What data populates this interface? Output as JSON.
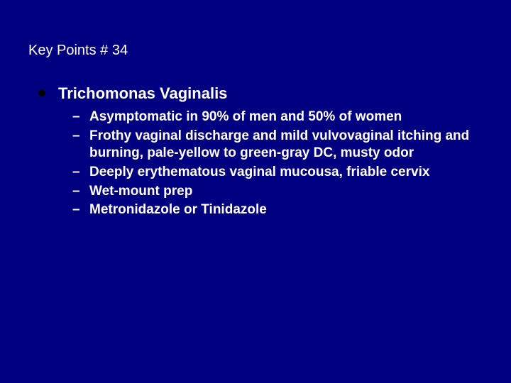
{
  "background_color": "#000080",
  "text_color": "#ffffff",
  "bullet_dot_color": "#000000",
  "title_fontsize": 20,
  "heading_fontsize": 22,
  "subitem_fontsize": 19,
  "slide": {
    "title": "Key Points # 34",
    "heading": "Trichomonas Vaginalis",
    "subitems": [
      "Asymptomatic in 90% of men and 50% of women",
      "Frothy vaginal discharge and mild vulvovaginal itching and burning,  pale-yellow to green-gray DC, musty odor",
      "Deeply erythematous vaginal mucousa, friable cervix",
      "Wet-mount prep",
      "Metronidazole or Tinidazole"
    ]
  }
}
